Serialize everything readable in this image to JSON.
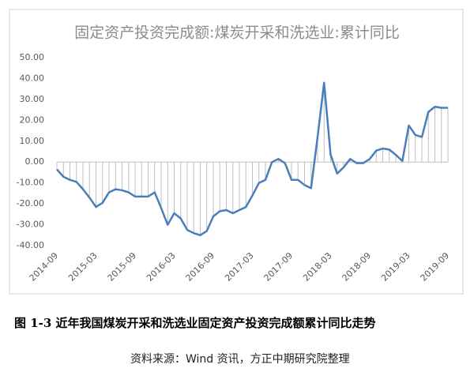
{
  "chart_data": {
    "type": "line",
    "title": "固定资产投资完成额:煤炭开采和洗选业:累计同比",
    "categories": [
      "2014-09",
      null,
      null,
      null,
      null,
      null,
      "2015-03",
      null,
      null,
      null,
      null,
      null,
      "2015-09",
      null,
      null,
      null,
      null,
      null,
      "2016-03",
      null,
      null,
      null,
      null,
      null,
      "2016-09",
      null,
      null,
      null,
      null,
      null,
      "2017-03",
      null,
      null,
      null,
      null,
      null,
      "2017-09",
      null,
      null,
      null,
      null,
      null,
      "2018-03",
      null,
      null,
      null,
      null,
      null,
      "2018-09",
      null,
      null,
      null,
      null,
      null,
      "2019-03",
      null,
      null,
      null,
      null,
      null,
      "2019-09"
    ],
    "values": [
      -3.5,
      -7,
      -8.5,
      -9.5,
      -13,
      -17,
      -21.5,
      -19.5,
      -14.5,
      -13,
      -13.5,
      -14.5,
      -16.5,
      -16.5,
      -16.5,
      -14.5,
      -22,
      -30,
      -24.5,
      -27,
      -32.5,
      -34,
      -35,
      -33,
      -26,
      -23.5,
      -23,
      -24.5,
      -23,
      -21.5,
      -16,
      -10,
      -8.5,
      0,
      1.5,
      -0.5,
      -8.5,
      -8.5,
      -11,
      -12.5,
      12,
      38,
      3.5,
      -5.5,
      -2.5,
      1.5,
      -0.5,
      -0.5,
      1.5,
      5.5,
      6.5,
      6,
      3.5,
      0.5,
      17.5,
      13,
      12,
      24,
      26.5,
      26,
      26
    ],
    "color": "#4a7ebb",
    "ylim": [
      -40,
      50
    ],
    "yticks": [
      {
        "value": -40,
        "label": "-40.00"
      },
      {
        "value": -30,
        "label": "-30.00"
      },
      {
        "value": -20,
        "label": "-20.00"
      },
      {
        "value": -10,
        "label": "-10.00"
      },
      {
        "value": 0,
        "label": "0.00"
      },
      {
        "value": 10,
        "label": "10.00"
      },
      {
        "value": 20,
        "label": "20.00"
      },
      {
        "value": 30,
        "label": "30.00"
      },
      {
        "value": 40,
        "label": "40.00"
      },
      {
        "value": 50,
        "label": "50.00"
      }
    ]
  },
  "caption": "图 1-3 近年我国煤炭开采和洗选业固定资产投资完成额累计同比走势",
  "source": "资料来源：Wind 资讯，方正中期研究院整理"
}
